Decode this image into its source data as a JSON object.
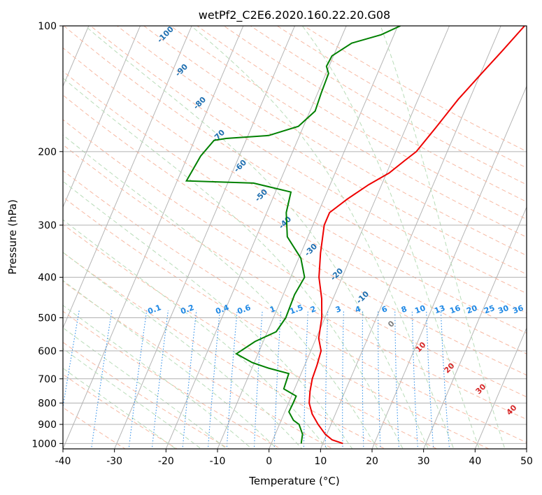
{
  "chart_data": {
    "type": "line",
    "title": "wetPf2_C2E6.2020.160.22.20.G08",
    "xlabel": "Temperature (°C)",
    "ylabel": "Pressure (hPa)",
    "xlim": [
      -40,
      50
    ],
    "ylim": [
      1030,
      100
    ],
    "y_scale": "log",
    "grid": true,
    "x_ticks": [
      -40,
      -30,
      -20,
      -10,
      0,
      10,
      20,
      30,
      40,
      50
    ],
    "y_ticks": [
      100,
      200,
      300,
      400,
      500,
      600,
      700,
      800,
      900,
      1000
    ],
    "temperature": {
      "color": "#ee0000",
      "points": [
        [
          13.9,
          1000
        ],
        [
          11.5,
          980
        ],
        [
          9.7,
          950
        ],
        [
          7.5,
          900
        ],
        [
          5.5,
          850
        ],
        [
          4.0,
          800
        ],
        [
          3.2,
          750
        ],
        [
          2.6,
          700
        ],
        [
          2.4,
          650
        ],
        [
          2.0,
          600
        ],
        [
          0.5,
          560
        ],
        [
          -0.6,
          500
        ],
        [
          -2.2,
          450
        ],
        [
          -4.5,
          400
        ],
        [
          -6.2,
          350
        ],
        [
          -7.8,
          300
        ],
        [
          -7.8,
          280
        ],
        [
          -5.5,
          260
        ],
        [
          -2.5,
          240
        ],
        [
          0.5,
          225
        ],
        [
          2.5,
          210
        ],
        [
          4.0,
          200
        ],
        [
          5.8,
          175
        ],
        [
          7.8,
          150
        ],
        [
          10.2,
          130
        ],
        [
          12.3,
          115
        ],
        [
          14.6,
          100
        ]
      ]
    },
    "dewpoint": {
      "color": "#008000",
      "points": [
        [
          5.8,
          1000
        ],
        [
          5.3,
          950
        ],
        [
          3.8,
          900
        ],
        [
          2.4,
          880
        ],
        [
          0.8,
          840
        ],
        [
          0.9,
          800
        ],
        [
          0.9,
          770
        ],
        [
          -2.1,
          740
        ],
        [
          -2.4,
          680
        ],
        [
          -6.8,
          660
        ],
        [
          -10.4,
          640
        ],
        [
          -14.2,
          610
        ],
        [
          -11.6,
          570
        ],
        [
          -8.3,
          540
        ],
        [
          -7.6,
          500
        ],
        [
          -7.8,
          440
        ],
        [
          -7.3,
          400
        ],
        [
          -9.6,
          360
        ],
        [
          -14.0,
          320
        ],
        [
          -16.2,
          280
        ],
        [
          -17.0,
          250
        ],
        [
          -25.0,
          238
        ],
        [
          -38.2,
          235
        ],
        [
          -37.5,
          205
        ],
        [
          -36.2,
          188
        ],
        [
          -34.0,
          186
        ],
        [
          -26.0,
          183
        ],
        [
          -21.0,
          174
        ],
        [
          -19.0,
          160
        ],
        [
          -19.3,
          145
        ],
        [
          -19.5,
          130
        ],
        [
          -20.5,
          125
        ],
        [
          -20.3,
          118
        ],
        [
          -17.5,
          110
        ],
        [
          -12.5,
          105
        ],
        [
          -9.5,
          100
        ]
      ]
    },
    "isobars": [
      100,
      200,
      300,
      400,
      500,
      600,
      700,
      800,
      900,
      1000
    ],
    "dry_adiabat_labels": [
      -100,
      -90,
      -80,
      -70,
      -60,
      -50,
      -40,
      -30,
      -20,
      -10
    ],
    "moist_adiabat_labels": [
      0,
      10,
      20,
      30,
      40
    ],
    "mixing_ratio_labels": [
      "0.1",
      "0.2",
      "0.4",
      "0.6",
      "1",
      "1.5",
      "2",
      "3",
      "4",
      "6",
      "8",
      "10",
      "13",
      "16",
      "20",
      "25",
      "30",
      "36"
    ]
  }
}
